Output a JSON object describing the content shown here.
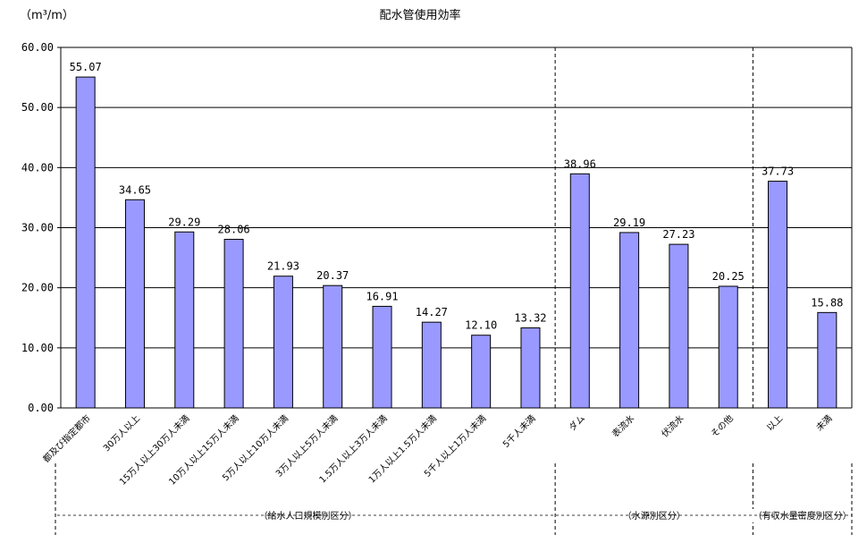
{
  "chart_data": {
    "type": "bar",
    "title": "配水管使用効率",
    "unit_label": "（m³/m）",
    "ylim": [
      0,
      60
    ],
    "yticks": [
      "0.00",
      "10.00",
      "20.00",
      "30.00",
      "40.00",
      "50.00",
      "60.00"
    ],
    "grid": true,
    "bar_color": "#9999ff",
    "categories": [
      "都及び指定都市",
      "30万人以上",
      "15万人以上30万人未満",
      "10万人以上15万人未満",
      "5万人以上10万人未満",
      "3万人以上5万人未満",
      "1.5万人以上3万人未満",
      "1万人以上1.5万人未満",
      "5千人以上1万人未満",
      "5千人未満",
      "ダム",
      "表流水",
      "伏流水",
      "その他",
      "以上",
      "未満"
    ],
    "values": [
      55.07,
      34.65,
      29.29,
      28.06,
      21.93,
      20.37,
      16.91,
      14.27,
      12.1,
      13.32,
      38.96,
      29.19,
      27.23,
      20.25,
      37.73,
      15.88
    ],
    "value_labels": [
      "55.07",
      "34.65",
      "29.29",
      "28.06",
      "21.93",
      "20.37",
      "16.91",
      "14.27",
      "12.10",
      "13.32",
      "38.96",
      "29.19",
      "27.23",
      "20.25",
      "37.73",
      "15.88"
    ],
    "groups": [
      {
        "label": "（給水人口規模別区分）",
        "count": 10
      },
      {
        "label": "（水源別区分）",
        "count": 4
      },
      {
        "label": "（有収水量密度別区分）",
        "count": 2
      }
    ]
  }
}
